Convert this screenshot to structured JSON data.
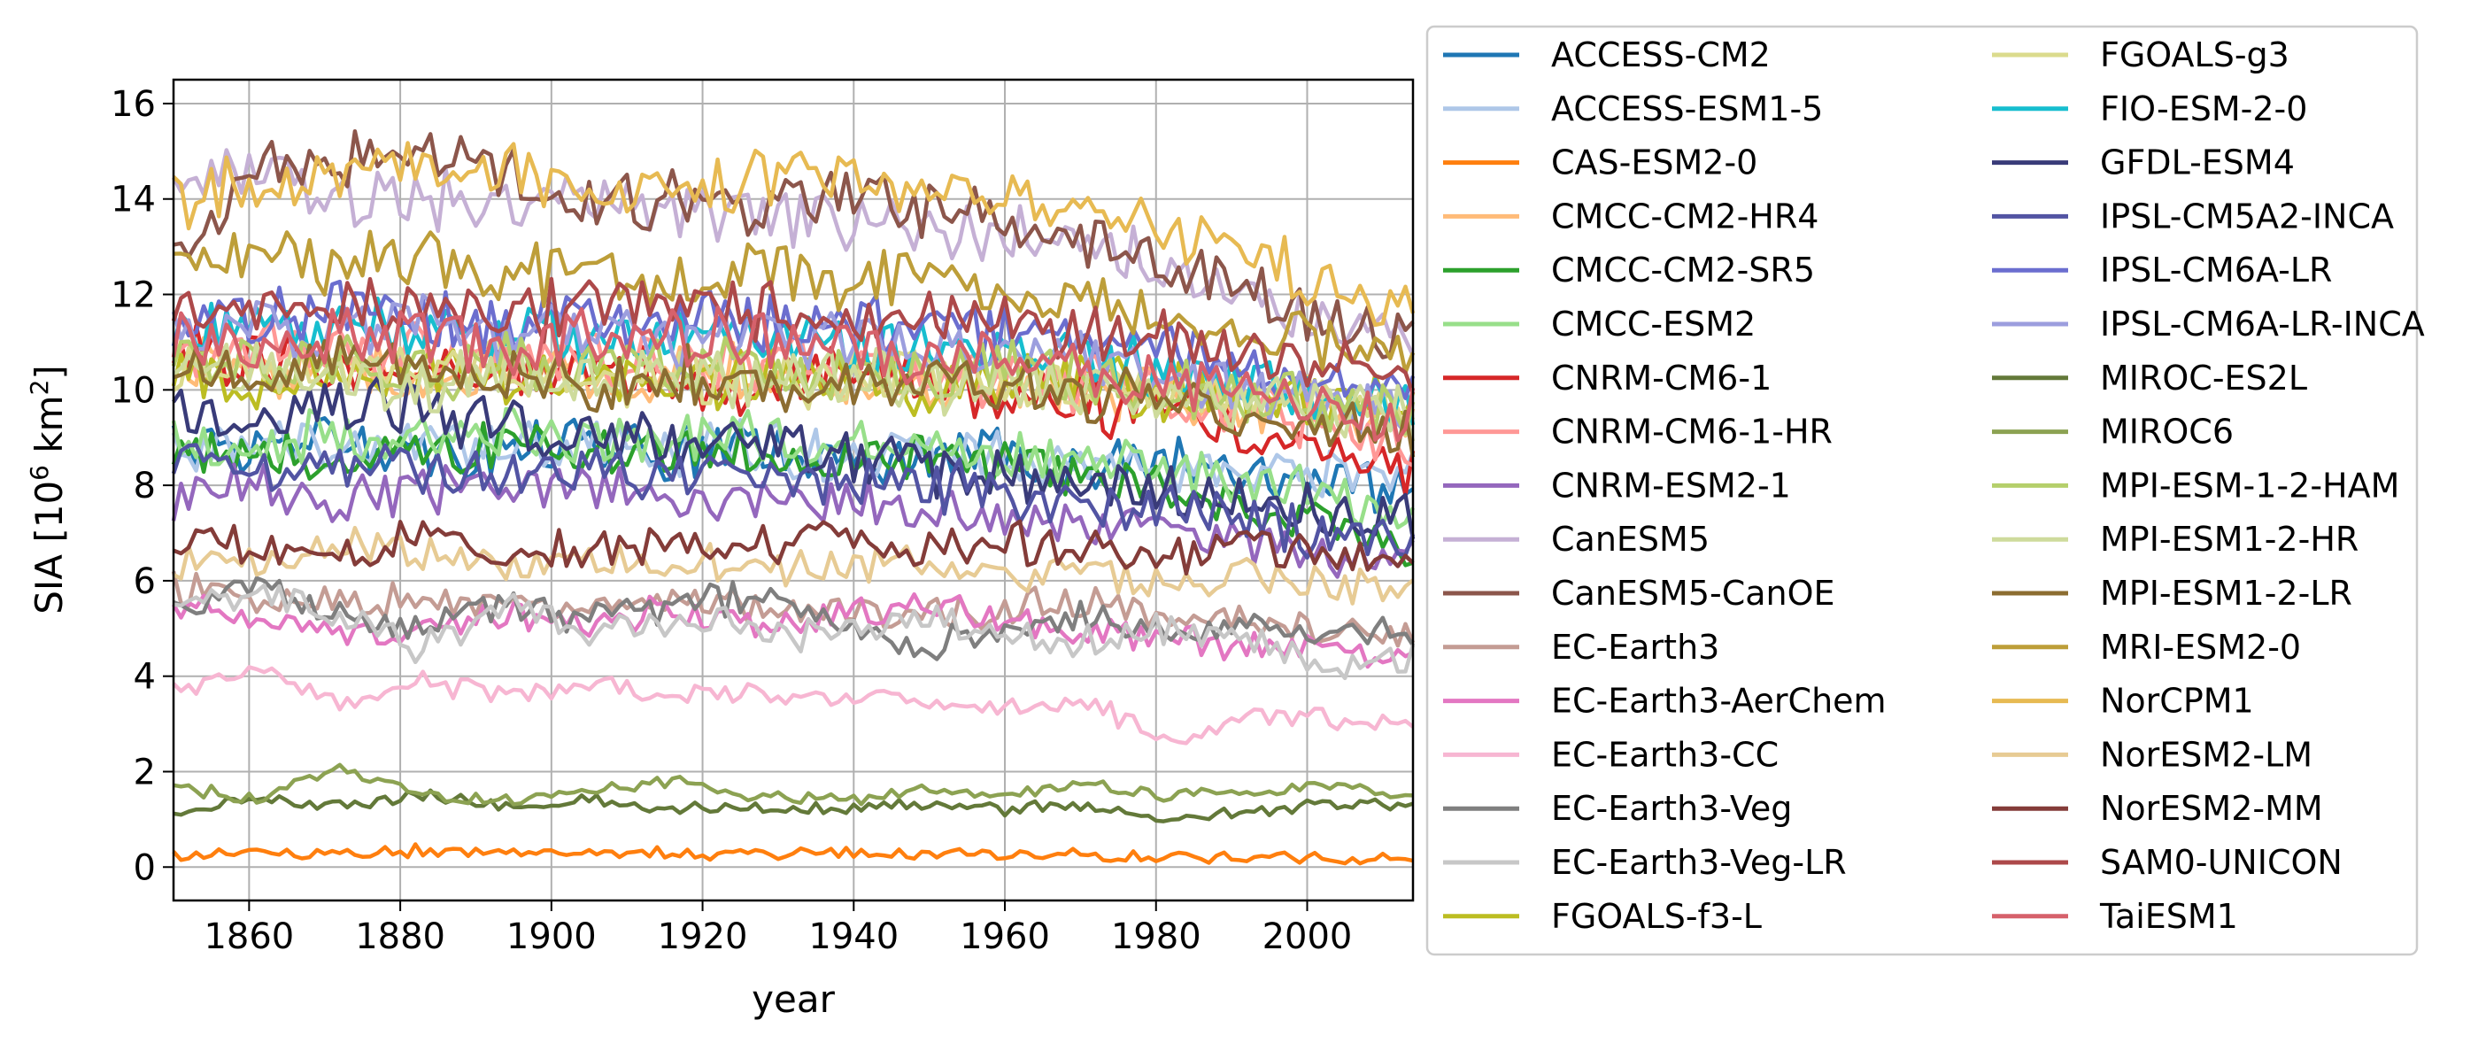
{
  "chart_data": {
    "type": "line",
    "xlabel": "year",
    "ylabel_prefix": "SIA [10",
    "ylabel_exp1": "6",
    "ylabel_mid": " km",
    "ylabel_exp2": "2",
    "ylabel_suffix": "]",
    "xlim": [
      1850,
      2014
    ],
    "ylim": [
      -0.7,
      16.5
    ],
    "xticks": [
      1860,
      1880,
      1900,
      1920,
      1940,
      1960,
      1980,
      2000
    ],
    "yticks": [
      0,
      2,
      4,
      6,
      8,
      10,
      12,
      14,
      16
    ],
    "grid": true,
    "legend_placement": "outside-right, two columns",
    "x_start": 1850,
    "x_end": 2014,
    "series": [
      {
        "name": "ACCESS-CM2",
        "color": "#1f77b4",
        "values": [
          8.9,
          8.7,
          9.0,
          8.8,
          8.7,
          8.9,
          8.6,
          8.8,
          8.5,
          8.6,
          8.7,
          8.4,
          8.5,
          8.3,
          8.1,
          7.9
        ]
      },
      {
        "name": "ACCESS-ESM1-5",
        "color": "#aec7e8",
        "values": [
          8.8,
          8.9,
          8.7,
          8.9,
          8.8,
          8.9,
          8.7,
          8.8,
          8.6,
          8.7,
          8.6,
          8.5,
          8.4,
          8.3,
          8.2,
          8.4
        ]
      },
      {
        "name": "CAS-ESM2-0",
        "color": "#ff7f0e",
        "values": [
          0.25,
          0.3,
          0.28,
          0.35,
          0.3,
          0.28,
          0.3,
          0.27,
          0.3,
          0.25,
          0.28,
          0.25,
          0.22,
          0.2,
          0.18,
          0.15
        ]
      },
      {
        "name": "CMCC-CM2-HR4",
        "color": "#ffbb78",
        "values": [
          10.6,
          10.4,
          10.5,
          10.3,
          10.4,
          10.2,
          10.3,
          10.4,
          10.2,
          10.3,
          10.1,
          10.0,
          9.8,
          9.7,
          9.5,
          9.3
        ]
      },
      {
        "name": "CMCC-CM2-SR5",
        "color": "#2ca02c",
        "values": [
          8.6,
          8.8,
          8.5,
          8.7,
          8.9,
          8.6,
          8.8,
          8.7,
          8.5,
          8.6,
          8.4,
          8.2,
          7.9,
          7.6,
          7.2,
          6.8
        ]
      },
      {
        "name": "CMCC-ESM2",
        "color": "#98df8a",
        "values": [
          9.0,
          8.9,
          9.1,
          9.0,
          9.2,
          8.9,
          9.0,
          9.1,
          8.9,
          8.8,
          8.7,
          8.5,
          8.2,
          8.0,
          7.8,
          7.5
        ]
      },
      {
        "name": "CNRM-CM6-1",
        "color": "#d62728",
        "values": [
          10.8,
          10.6,
          10.4,
          10.5,
          10.3,
          10.4,
          10.2,
          10.1,
          10.3,
          10.0,
          9.9,
          9.7,
          9.5,
          9.2,
          8.8,
          8.3
        ]
      },
      {
        "name": "CNRM-CM6-1-HR",
        "color": "#ff9896",
        "values": [
          11.0,
          10.9,
          10.7,
          10.8,
          10.6,
          10.7,
          10.5,
          10.4,
          10.6,
          10.3,
          10.2,
          10.1,
          9.9,
          9.6,
          9.3,
          8.9
        ]
      },
      {
        "name": "CNRM-ESM2-1",
        "color": "#9467bd",
        "values": [
          7.8,
          8.0,
          7.6,
          7.9,
          7.8,
          8.0,
          7.7,
          7.8,
          7.6,
          7.5,
          7.4,
          7.2,
          7.0,
          6.8,
          6.6,
          6.5
        ]
      },
      {
        "name": "CanESM5",
        "color": "#c5b0d5",
        "values": [
          14.3,
          14.5,
          14.1,
          14.0,
          13.8,
          13.9,
          13.7,
          13.8,
          13.6,
          13.5,
          13.3,
          13.0,
          12.6,
          12.0,
          11.4,
          10.9
        ]
      },
      {
        "name": "CanESM5-CanOE",
        "color": "#8c564b",
        "values": [
          13.0,
          14.6,
          14.8,
          15.2,
          14.5,
          13.8,
          14.0,
          13.6,
          14.3,
          13.9,
          13.5,
          13.2,
          12.6,
          12.0,
          11.5,
          11.0
        ]
      },
      {
        "name": "EC-Earth3",
        "color": "#c49c94",
        "values": [
          5.9,
          5.7,
          5.5,
          5.6,
          5.4,
          5.5,
          5.6,
          5.4,
          5.5,
          5.3,
          5.4,
          5.6,
          5.3,
          5.1,
          4.9,
          4.8
        ]
      },
      {
        "name": "EC-Earth3-AerChem",
        "color": "#e377c2",
        "values": [
          5.6,
          5.2,
          4.8,
          5.0,
          5.3,
          5.1,
          5.4,
          5.0,
          5.3,
          5.5,
          5.2,
          5.0,
          4.8,
          4.6,
          4.5,
          4.4
        ]
      },
      {
        "name": "EC-Earth3-CC",
        "color": "#f7b6d2",
        "values": [
          3.7,
          4.2,
          3.4,
          3.9,
          3.6,
          3.8,
          3.5,
          3.7,
          3.4,
          3.6,
          3.3,
          3.5,
          2.7,
          3.2,
          3.1,
          2.9
        ]
      },
      {
        "name": "EC-Earth3-Veg",
        "color": "#7f7f7f",
        "values": [
          5.5,
          5.8,
          5.3,
          5.0,
          5.6,
          5.2,
          5.4,
          5.7,
          5.1,
          4.6,
          5.0,
          5.3,
          4.9,
          5.1,
          4.8,
          5.0
        ]
      },
      {
        "name": "EC-Earth3-Veg-LR",
        "color": "#c7c7c7",
        "values": [
          5.4,
          5.8,
          5.2,
          4.6,
          5.5,
          4.9,
          5.2,
          5.0,
          4.8,
          5.2,
          4.9,
          4.7,
          5.0,
          4.8,
          4.3,
          4.4
        ]
      },
      {
        "name": "FGOALS-f3-L",
        "color": "#bcbd22",
        "values": [
          10.3,
          10.2,
          10.4,
          10.3,
          10.2,
          10.4,
          10.3,
          10.2,
          10.3,
          10.1,
          10.2,
          10.1,
          10.0,
          9.9,
          9.8,
          9.7
        ]
      },
      {
        "name": "FGOALS-g3",
        "color": "#dbdb8d",
        "values": [
          10.4,
          10.3,
          10.5,
          10.2,
          10.4,
          10.3,
          10.4,
          10.2,
          10.3,
          10.4,
          10.2,
          10.1,
          10.0,
          9.9,
          9.8,
          9.6
        ]
      },
      {
        "name": "FIO-ESM-2-0",
        "color": "#17becf",
        "values": [
          11.3,
          11.1,
          11.4,
          11.2,
          11.3,
          11.0,
          11.2,
          11.1,
          11.0,
          10.9,
          10.8,
          10.7,
          10.4,
          10.1,
          9.8,
          9.4
        ]
      },
      {
        "name": "GFDL-ESM4",
        "color": "#393b79",
        "values": [
          9.6,
          9.4,
          9.8,
          9.6,
          9.3,
          9.1,
          8.9,
          8.7,
          8.5,
          8.3,
          8.2,
          8.0,
          7.9,
          7.7,
          7.5,
          7.3
        ]
      },
      {
        "name": "IPSL-CM5A2-INCA",
        "color": "#5254a3",
        "values": [
          8.5,
          8.4,
          8.6,
          8.3,
          8.2,
          8.4,
          8.1,
          8.3,
          8.0,
          8.1,
          7.8,
          7.6,
          7.5,
          7.3,
          7.0,
          6.8
        ]
      },
      {
        "name": "IPSL-CM6A-LR",
        "color": "#6b6ecf",
        "values": [
          11.5,
          11.4,
          11.7,
          11.5,
          11.3,
          11.6,
          11.4,
          11.5,
          11.3,
          11.4,
          11.2,
          11.0,
          10.8,
          10.6,
          10.3,
          10.0
        ]
      },
      {
        "name": "IPSL-CM6A-LR-INCA",
        "color": "#9c9ede",
        "values": [
          11.3,
          11.5,
          11.2,
          11.4,
          11.1,
          11.3,
          11.0,
          11.2,
          11.0,
          10.9,
          10.8,
          10.6,
          10.3,
          10.0,
          9.7,
          9.4
        ]
      },
      {
        "name": "MIROC-ES2L",
        "color": "#637939",
        "values": [
          1.2,
          1.4,
          1.3,
          1.5,
          1.3,
          1.4,
          1.2,
          1.3,
          1.2,
          1.3,
          1.2,
          1.3,
          1.0,
          1.2,
          1.3,
          1.3
        ]
      },
      {
        "name": "MIROC6",
        "color": "#8ca252",
        "values": [
          1.7,
          1.4,
          2.1,
          1.5,
          1.4,
          1.6,
          1.8,
          1.5,
          1.4,
          1.6,
          1.5,
          1.7,
          1.5,
          1.6,
          1.7,
          1.5
        ]
      },
      {
        "name": "MPI-ESM-1-2-HAM",
        "color": "#b5cf6b",
        "values": [
          10.6,
          10.5,
          10.7,
          10.4,
          10.6,
          10.5,
          10.3,
          10.5,
          10.4,
          10.3,
          10.4,
          10.2,
          10.1,
          9.9,
          9.7,
          9.5
        ]
      },
      {
        "name": "MPI-ESM1-2-HR",
        "color": "#cedb9c",
        "values": [
          10.2,
          10.4,
          10.3,
          10.1,
          10.3,
          10.2,
          10.4,
          10.2,
          10.3,
          10.1,
          10.2,
          10.0,
          9.9,
          9.8,
          9.6,
          9.5
        ]
      },
      {
        "name": "MPI-ESM1-2-LR",
        "color": "#8c6d31",
        "values": [
          10.4,
          10.3,
          10.5,
          10.3,
          10.4,
          10.2,
          10.3,
          10.2,
          10.1,
          10.2,
          10.0,
          9.9,
          9.8,
          9.6,
          9.3,
          9.0
        ]
      },
      {
        "name": "MRI-ESM2-0",
        "color": "#bd9e39",
        "values": [
          12.4,
          12.9,
          12.6,
          12.8,
          12.3,
          12.5,
          12.2,
          12.6,
          12.3,
          12.4,
          12.1,
          11.9,
          11.6,
          11.3,
          11.0,
          10.7
        ]
      },
      {
        "name": "NorCPM1",
        "color": "#e7ba52",
        "values": [
          14.0,
          14.3,
          14.5,
          14.8,
          14.6,
          14.2,
          14.4,
          14.3,
          14.6,
          14.2,
          14.0,
          13.7,
          13.3,
          12.8,
          12.2,
          11.6
        ]
      },
      {
        "name": "NorESM2-LM",
        "color": "#e7cb94",
        "values": [
          6.3,
          6.5,
          6.8,
          6.6,
          6.4,
          6.5,
          6.3,
          6.4,
          6.2,
          6.4,
          6.1,
          6.2,
          6.0,
          6.1,
          5.9,
          5.8
        ]
      },
      {
        "name": "NorESM2-MM",
        "color": "#843c39",
        "values": [
          7.0,
          6.8,
          6.5,
          6.9,
          6.7,
          6.6,
          6.8,
          6.7,
          6.9,
          6.6,
          6.8,
          6.7,
          6.5,
          6.6,
          6.4,
          6.5
        ]
      },
      {
        "name": "SAM0-UNICON",
        "color": "#ad494a",
        "values": [
          11.8,
          11.6,
          11.9,
          11.7,
          11.5,
          11.8,
          11.6,
          11.7,
          11.5,
          11.6,
          11.4,
          11.2,
          11.0,
          10.8,
          10.5,
          10.2
        ]
      },
      {
        "name": "TaiESM1",
        "color": "#d6616b",
        "values": [
          11.2,
          11.0,
          11.3,
          11.1,
          10.9,
          11.2,
          11.0,
          11.1,
          10.9,
          10.8,
          10.7,
          10.5,
          10.3,
          10.0,
          9.7,
          9.4
        ]
      }
    ]
  }
}
